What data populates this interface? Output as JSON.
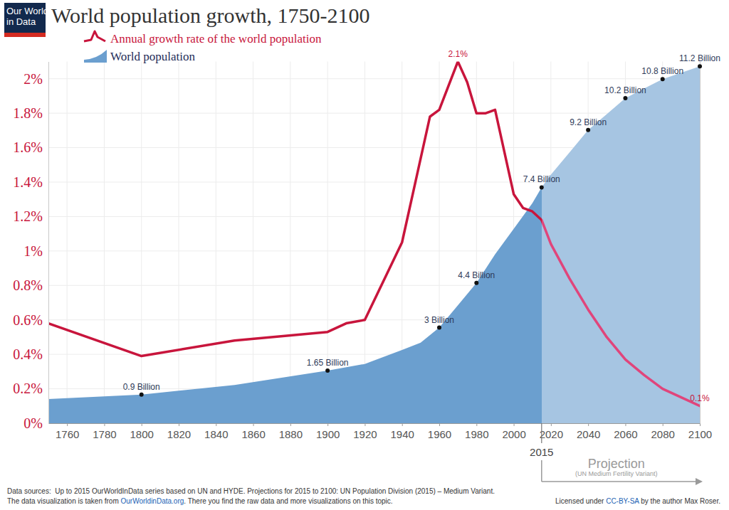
{
  "chart_data": {
    "type": "line",
    "title": "World population growth, 1750-2100",
    "logo": [
      "Our World",
      "in Data"
    ],
    "legend": "top-left",
    "grid": true,
    "data_labels": true,
    "xlim": [
      1750,
      2100
    ],
    "xticks": [
      1760,
      1780,
      1800,
      1820,
      1840,
      1860,
      1880,
      1900,
      1920,
      1940,
      1960,
      1980,
      2000,
      2020,
      2040,
      2060,
      2080,
      2100
    ],
    "ylim": [
      0,
      2.1
    ],
    "yticks": [
      {
        "value": 0,
        "label": "0%"
      },
      {
        "value": 0.2,
        "label": "0.2%"
      },
      {
        "value": 0.4,
        "label": "0.4%"
      },
      {
        "value": 0.6,
        "label": "0.6%"
      },
      {
        "value": 0.8,
        "label": "0.8%"
      },
      {
        "value": 1,
        "label": "1%"
      },
      {
        "value": 1.2,
        "label": "1.2%"
      },
      {
        "value": 1.4,
        "label": "1.4%"
      },
      {
        "value": 1.6,
        "label": "1.6%"
      },
      {
        "value": 1.8,
        "label": "1.8%"
      },
      {
        "value": 2,
        "label": "2%"
      }
    ],
    "y2lim": [
      0,
      11.35
    ],
    "series": [
      {
        "name": "Annual growth rate of the world population",
        "type": "line",
        "color": "#c8153c",
        "x": [
          1750,
          1800,
          1850,
          1900,
          1910,
          1920,
          1940,
          1955,
          1960,
          1970,
          1975,
          1980,
          1985,
          1990,
          2000,
          2005,
          2010,
          2015,
          2020,
          2030,
          2040,
          2050,
          2060,
          2070,
          2080,
          2090,
          2100
        ],
        "values": [
          0.58,
          0.39,
          0.48,
          0.53,
          0.58,
          0.6,
          1.05,
          1.78,
          1.82,
          2.1,
          1.98,
          1.8,
          1.8,
          1.82,
          1.33,
          1.25,
          1.23,
          1.18,
          1.04,
          0.84,
          0.66,
          0.5,
          0.37,
          0.28,
          0.2,
          0.15,
          0.1
        ],
        "value_labels": [
          null,
          null,
          null,
          null,
          null,
          null,
          null,
          null,
          null,
          "2.1%",
          null,
          null,
          null,
          null,
          null,
          null,
          null,
          null,
          null,
          null,
          null,
          null,
          null,
          null,
          null,
          null,
          "0.1%"
        ]
      },
      {
        "name": "World population",
        "type": "area",
        "color": "#6b9fcf",
        "axis": "y2",
        "x": [
          1750,
          1800,
          1850,
          1900,
          1920,
          1940,
          1950,
          1960,
          1970,
          1980,
          1990,
          2000,
          2010,
          2015,
          2020,
          2030,
          2040,
          2050,
          2060,
          2070,
          2080,
          2090,
          2100
        ],
        "values": [
          0.76,
          0.9,
          1.2,
          1.65,
          1.86,
          2.3,
          2.53,
          3,
          3.7,
          4.4,
          5.3,
          6.1,
          6.9,
          7.4,
          7.8,
          8.5,
          9.2,
          9.7,
          10.2,
          10.5,
          10.8,
          11,
          11.2
        ],
        "value_labels": [
          null,
          "0.9 Billion",
          null,
          "1.65 Billion",
          null,
          null,
          null,
          "3 Billion",
          null,
          "4.4 Billion",
          null,
          null,
          null,
          "7.4 Billion",
          null,
          null,
          "9.2 Billion",
          null,
          "10.2 Billion",
          null,
          "10.8 Billion",
          null,
          "11.2 Billion"
        ]
      }
    ],
    "annotations": [
      {
        "x": 2015,
        "text": "Projection",
        "subtext": "(UN Medium Fertility Variant)"
      }
    ],
    "notes": [
      [
        "Data sources:  Up to 2015 OurWorldInData series based on UN and HYDE. Projections for 2015 to 2100: UN Population Division (2015) – Medium Variant."
      ],
      [
        "The data visualization is taken from ",
        "OurWorldinData.org",
        ". There you find the raw data and more visualizations on this topic."
      ]
    ],
    "license": [
      "Licensed under ",
      "CC-BY-SA",
      " by the author Max Roser."
    ]
  }
}
